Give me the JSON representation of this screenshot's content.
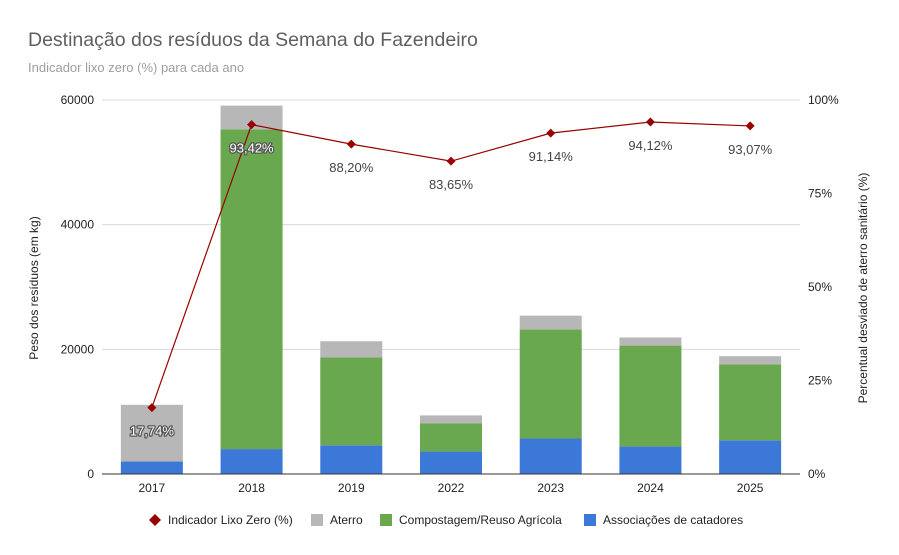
{
  "chart_data": {
    "type": "bar",
    "stacked": true,
    "title": "Destinação dos resíduos da Semana do Fazendeiro",
    "subtitle": "Indicador lixo zero (%) para cada ano",
    "categories": [
      "2017",
      "2018",
      "2019",
      "2022",
      "2023",
      "2024",
      "2025"
    ],
    "ylabel": "Peso dos resíduos (em kg)",
    "ylim": [
      0,
      60000
    ],
    "yticks": [
      "0",
      "20000",
      "40000",
      "60000"
    ],
    "y2label": "Percentual desviado de aterro sanitário (%)",
    "y2lim": [
      0,
      100
    ],
    "y2ticks": [
      "0%",
      "25%",
      "50%",
      "75%",
      "100%"
    ],
    "grid": true,
    "legend_position": "bottom",
    "series": [
      {
        "name": "Associações de catadores",
        "color": "#3c78d8",
        "values": [
          2000,
          4000,
          4600,
          3600,
          5700,
          4400,
          5400
        ]
      },
      {
        "name": "Compostagem/Reuso Agrícola",
        "color": "#6aa84f",
        "values": [
          0,
          51300,
          14100,
          4500,
          17500,
          16200,
          12200
        ]
      },
      {
        "name": "Aterro",
        "color": "#b7b7b7",
        "values": [
          9100,
          3800,
          2600,
          1300,
          2200,
          1300,
          1300
        ]
      }
    ],
    "line_series": {
      "name": "Indicador Lixo Zero (%)",
      "color": "#990000",
      "values": [
        17.74,
        93.42,
        88.2,
        83.65,
        91.14,
        94.12,
        93.07
      ],
      "labels": [
        "17,74%",
        "93,42%",
        "88,20%",
        "83,65%",
        "91,14%",
        "94,12%",
        "93,07%"
      ]
    },
    "legend": [
      "Indicador Lixo Zero (%)",
      "Aterro",
      "Compostagem/Reuso Agrícola",
      "Associações de catadores"
    ]
  }
}
